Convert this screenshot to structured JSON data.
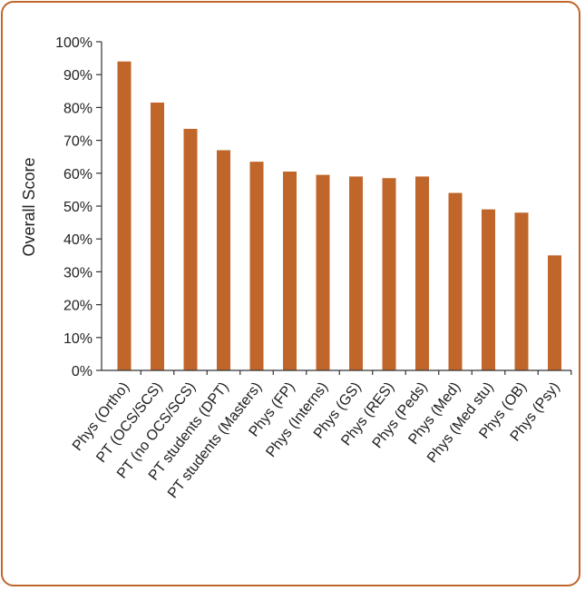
{
  "chart_data": {
    "type": "bar",
    "title": "",
    "xlabel": "",
    "ylabel": "Overall Score",
    "ylim": [
      0,
      100
    ],
    "y_ticks": [
      "0%",
      "10%",
      "20%",
      "30%",
      "40%",
      "50%",
      "60%",
      "70%",
      "80%",
      "90%",
      "100%"
    ],
    "categories": [
      "Phys (Ortho)",
      "PT (OCS/SCS)",
      "PT (no OCS/SCS)",
      "PT students (DPT)",
      "PT students (Masters)",
      "Phys (FP)",
      "Phys (Interns)",
      "Phys (GS)",
      "Phys (RES)",
      "Phys (Peds)",
      "Phys (Med)",
      "Phys (Med stu)",
      "Phys (OB)",
      "Phys (Psy)"
    ],
    "values": [
      94,
      81.5,
      73.5,
      67,
      63.5,
      60.5,
      59.5,
      59,
      58.5,
      59,
      54,
      49,
      48,
      35
    ],
    "grid": false,
    "legend": "none",
    "colors": {
      "bar": "#c0662b",
      "frame": "#c0662b",
      "axis": "#333333"
    }
  }
}
